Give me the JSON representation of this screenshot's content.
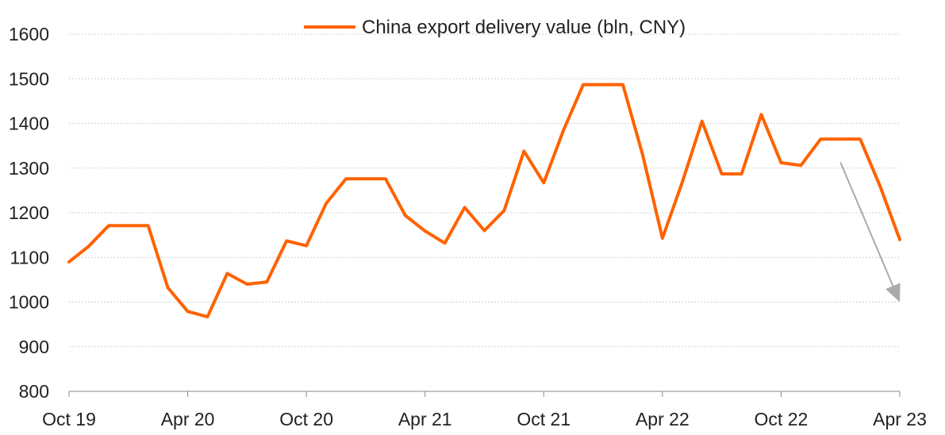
{
  "chart_data": {
    "type": "line",
    "title": "",
    "xlabel": "",
    "ylabel": "",
    "ylim": [
      800,
      1600
    ],
    "y_ticks": [
      800,
      900,
      1000,
      1100,
      1200,
      1300,
      1400,
      1500,
      1600
    ],
    "x_tick_labels": [
      "Oct 19",
      "Apr 20",
      "Oct 20",
      "Apr 21",
      "Oct 21",
      "Apr 22",
      "Oct 22",
      "Apr 23"
    ],
    "grid": "horizontal",
    "legend_position": "top-center",
    "x": [
      "Oct 19",
      "Nov 19",
      "Dec 19",
      "Jan 20",
      "Feb 20",
      "Mar 20",
      "Apr 20",
      "May 20",
      "Jun 20",
      "Jul 20",
      "Aug 20",
      "Sep 20",
      "Oct 20",
      "Nov 20",
      "Dec 20",
      "Jan 21",
      "Feb 21",
      "Mar 21",
      "Apr 21",
      "May 21",
      "Jun 21",
      "Jul 21",
      "Aug 21",
      "Sep 21",
      "Oct 21",
      "Nov 21",
      "Dec 21",
      "Jan 22",
      "Feb 22",
      "Mar 22",
      "Apr 22",
      "May 22",
      "Jun 22",
      "Jul 22",
      "Aug 22",
      "Sep 22",
      "Oct 22",
      "Nov 22",
      "Dec 22",
      "Jan 23",
      "Feb 23",
      "Mar 23",
      "Apr 23"
    ],
    "series": [
      {
        "name": "China export delivery value (bln, CNY)",
        "color": "#FF6200",
        "values": [
          1090,
          1125,
          1171,
          1171,
          1171,
          1032,
          979,
          967,
          1064,
          1040,
          1045,
          1137,
          1126,
          1221,
          1276,
          1276,
          1276,
          1194,
          1159,
          1132,
          1212,
          1160,
          1205,
          1338,
          1267,
          1385,
          1487,
          1487,
          1487,
          1330,
          1143,
          1268,
          1405,
          1287,
          1287,
          1420,
          1312,
          1306,
          1365,
          1365,
          1365,
          1260,
          1140
        ]
      }
    ],
    "annotation": {
      "type": "arrow",
      "color": "#AAAAAA",
      "from": [
        "Jan 23",
        1313
      ],
      "to": [
        "Apr 23",
        1000
      ]
    }
  }
}
